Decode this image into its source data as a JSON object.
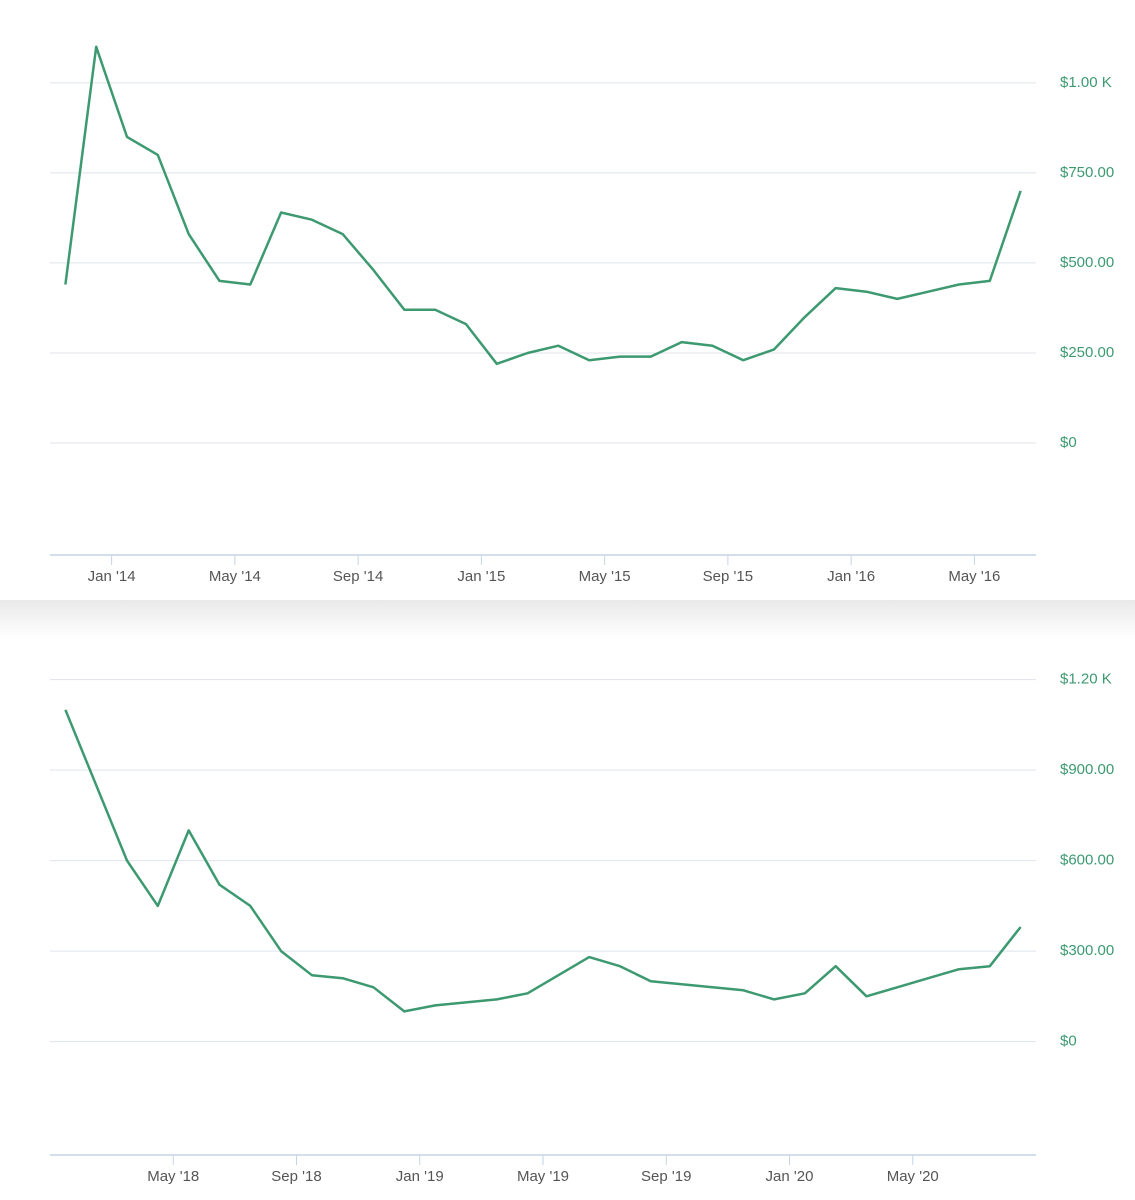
{
  "chart_data": [
    {
      "type": "line",
      "color": "#3d9970",
      "grid": true,
      "x": [
        "2013-11",
        "2013-12",
        "2014-01",
        "2014-02",
        "2014-03",
        "2014-04",
        "2014-05",
        "2014-06",
        "2014-07",
        "2014-08",
        "2014-09",
        "2014-10",
        "2014-11",
        "2014-12",
        "2015-01",
        "2015-02",
        "2015-03",
        "2015-04",
        "2015-05",
        "2015-06",
        "2015-07",
        "2015-08",
        "2015-09",
        "2015-10",
        "2015-11",
        "2015-12",
        "2016-01",
        "2016-02",
        "2016-03",
        "2016-04",
        "2016-05",
        "2016-06"
      ],
      "values": [
        440,
        1100,
        850,
        800,
        580,
        450,
        440,
        640,
        620,
        580,
        480,
        370,
        370,
        330,
        220,
        250,
        270,
        230,
        240,
        240,
        280,
        270,
        230,
        260,
        350,
        430,
        420,
        400,
        420,
        440,
        450,
        700
      ],
      "xlim": [
        "2013-11",
        "2016-07"
      ],
      "xticks": [
        {
          "value": "2014-01",
          "label": "Jan '14"
        },
        {
          "value": "2014-05",
          "label": "May '14"
        },
        {
          "value": "2014-09",
          "label": "Sep '14"
        },
        {
          "value": "2015-01",
          "label": "Jan '15"
        },
        {
          "value": "2015-05",
          "label": "May '15"
        },
        {
          "value": "2015-09",
          "label": "Sep '15"
        },
        {
          "value": "2016-01",
          "label": "Jan '16"
        },
        {
          "value": "2016-05",
          "label": "May '16"
        }
      ],
      "ylim": [
        -311,
        1230
      ],
      "yticks": [
        {
          "value": 0,
          "label": "$0"
        },
        {
          "value": 250,
          "label": "$250.00"
        },
        {
          "value": 500,
          "label": "$500.00"
        },
        {
          "value": 750,
          "label": "$750.00"
        },
        {
          "value": 1000,
          "label": "$1.00 K"
        }
      ]
    },
    {
      "type": "line",
      "color": "#3d9970",
      "grid": true,
      "x": [
        "2018-01",
        "2018-02",
        "2018-03",
        "2018-04",
        "2018-05",
        "2018-06",
        "2018-07",
        "2018-08",
        "2018-09",
        "2018-10",
        "2018-11",
        "2018-12",
        "2019-01",
        "2019-02",
        "2019-03",
        "2019-04",
        "2019-05",
        "2019-06",
        "2019-07",
        "2019-08",
        "2019-09",
        "2019-10",
        "2019-11",
        "2019-12",
        "2020-01",
        "2020-02",
        "2020-03",
        "2020-04",
        "2020-05",
        "2020-06",
        "2020-07",
        "2020-08"
      ],
      "values": [
        1100,
        850,
        600,
        450,
        700,
        520,
        450,
        300,
        220,
        210,
        180,
        100,
        120,
        130,
        140,
        160,
        220,
        280,
        250,
        200,
        190,
        180,
        170,
        140,
        160,
        250,
        150,
        180,
        210,
        240,
        250,
        380
      ],
      "xlim": [
        "2018-01",
        "2020-09"
      ],
      "xticks": [
        {
          "value": "2018-05",
          "label": "May '18"
        },
        {
          "value": "2018-09",
          "label": "Sep '18"
        },
        {
          "value": "2019-01",
          "label": "Jan '19"
        },
        {
          "value": "2019-05",
          "label": "May '19"
        },
        {
          "value": "2019-09",
          "label": "Sep '19"
        },
        {
          "value": "2020-01",
          "label": "Jan '20"
        },
        {
          "value": "2020-05",
          "label": "May '20"
        }
      ],
      "ylim": [
        -376,
        1464
      ],
      "yticks": [
        {
          "value": 0,
          "label": "$0"
        },
        {
          "value": 300,
          "label": "$300.00"
        },
        {
          "value": 600,
          "label": "$600.00"
        },
        {
          "value": 900,
          "label": "$900.00"
        },
        {
          "value": 1200,
          "label": "$1.20 K"
        }
      ]
    }
  ]
}
